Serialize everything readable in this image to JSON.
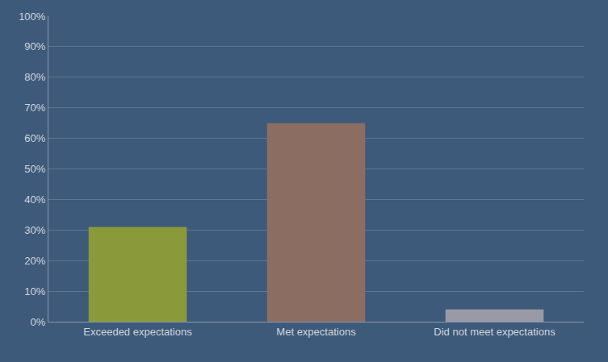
{
  "chart_data": {
    "type": "bar",
    "categories": [
      "Exceeded expectations",
      "Met expectations",
      "Did not meet expectations"
    ],
    "values": [
      31,
      65,
      4
    ],
    "colors": [
      "#8a9a3b",
      "#8c6d62",
      "#9a9aa6"
    ],
    "ylim": [
      0,
      100
    ],
    "yticks": [
      {
        "value": 0,
        "label": "0%"
      },
      {
        "value": 10,
        "label": "10%"
      },
      {
        "value": 20,
        "label": "20%"
      },
      {
        "value": 30,
        "label": "30%"
      },
      {
        "value": 40,
        "label": "40%"
      },
      {
        "value": 50,
        "label": "50%"
      },
      {
        "value": 60,
        "label": "60%"
      },
      {
        "value": 70,
        "label": "70%"
      },
      {
        "value": 80,
        "label": "80%"
      },
      {
        "value": 90,
        "label": "90%"
      },
      {
        "value": 100,
        "label": "100%"
      }
    ],
    "grid": true
  }
}
